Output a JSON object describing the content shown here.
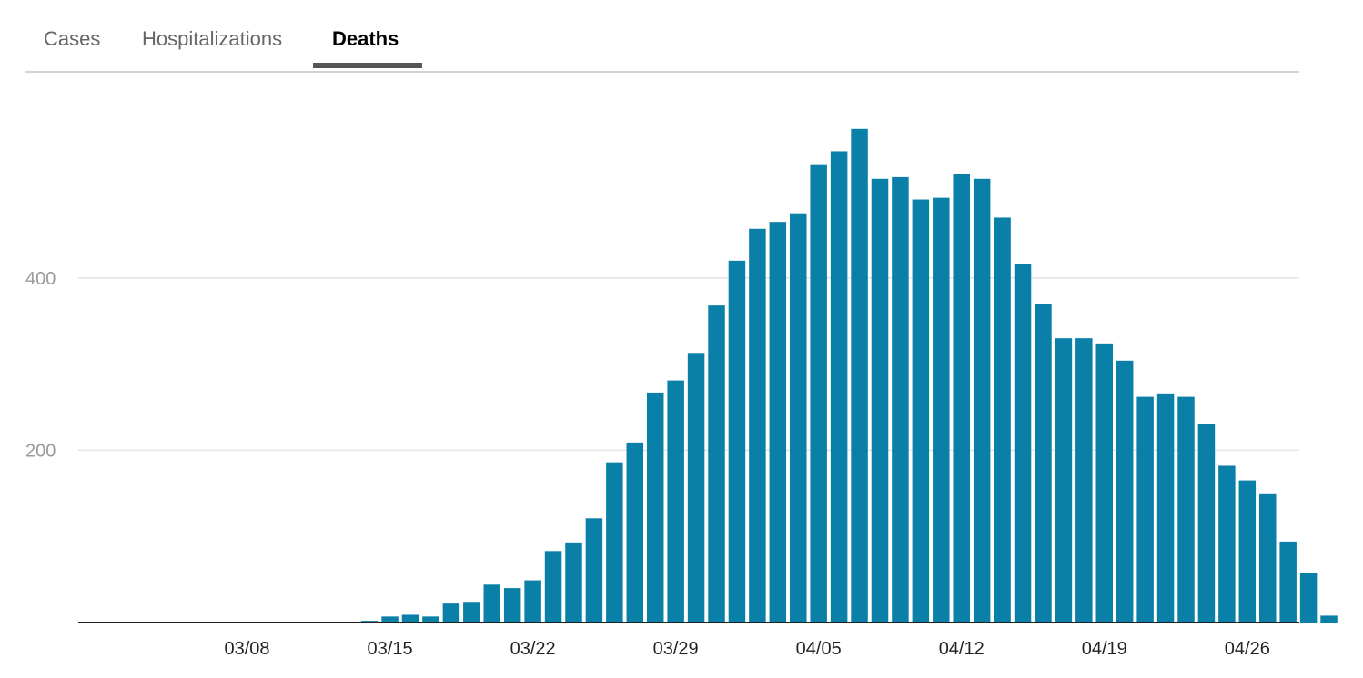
{
  "tabs": [
    {
      "label": "Cases",
      "active": false
    },
    {
      "label": "Hospitalizations",
      "active": false
    },
    {
      "label": "Deaths",
      "active": true
    }
  ],
  "colors": {
    "bar": "#0a80a9",
    "grid": "#e3e3e3",
    "axis": "#222222",
    "tab_underline": "#555555"
  },
  "chart_data": {
    "type": "bar",
    "title": "Deaths",
    "xlabel": "",
    "ylabel": "",
    "ylim": [
      0,
      600
    ],
    "yticks": [
      200,
      400
    ],
    "grid": true,
    "categories": [
      "03/01",
      "03/02",
      "03/03",
      "03/04",
      "03/05",
      "03/06",
      "03/07",
      "03/08",
      "03/09",
      "03/10",
      "03/11",
      "03/12",
      "03/13",
      "03/14",
      "03/15",
      "03/16",
      "03/17",
      "03/18",
      "03/19",
      "03/20",
      "03/21",
      "03/22",
      "03/23",
      "03/24",
      "03/25",
      "03/26",
      "03/27",
      "03/28",
      "03/29",
      "03/30",
      "03/31",
      "04/01",
      "04/02",
      "04/03",
      "04/04",
      "04/05",
      "04/06",
      "04/07",
      "04/08",
      "04/09",
      "04/10",
      "04/11",
      "04/12",
      "04/13",
      "04/14",
      "04/15",
      "04/16",
      "04/17",
      "04/18",
      "04/19",
      "04/20",
      "04/21",
      "04/22",
      "04/23",
      "04/24",
      "04/25",
      "04/26",
      "04/27",
      "04/28",
      "04/29",
      "04/30"
    ],
    "values": [
      0,
      0,
      0,
      0,
      0,
      0,
      0,
      0,
      0,
      0,
      0,
      0,
      1,
      2,
      7,
      9,
      7,
      22,
      24,
      44,
      40,
      49,
      83,
      93,
      121,
      186,
      209,
      267,
      281,
      313,
      368,
      420,
      457,
      465,
      475,
      532,
      547,
      573,
      515,
      517,
      491,
      493,
      521,
      515,
      470,
      416,
      370,
      330,
      330,
      324,
      304,
      262,
      266,
      262,
      231,
      182,
      165,
      150,
      94,
      57,
      8
    ],
    "xtick_labels": [
      {
        "label": "03/08",
        "index": 7
      },
      {
        "label": "03/15",
        "index": 14
      },
      {
        "label": "03/22",
        "index": 21
      },
      {
        "label": "03/29",
        "index": 28
      },
      {
        "label": "04/05",
        "index": 35
      },
      {
        "label": "04/12",
        "index": 42
      },
      {
        "label": "04/19",
        "index": 49
      },
      {
        "label": "04/26",
        "index": 56
      }
    ]
  }
}
